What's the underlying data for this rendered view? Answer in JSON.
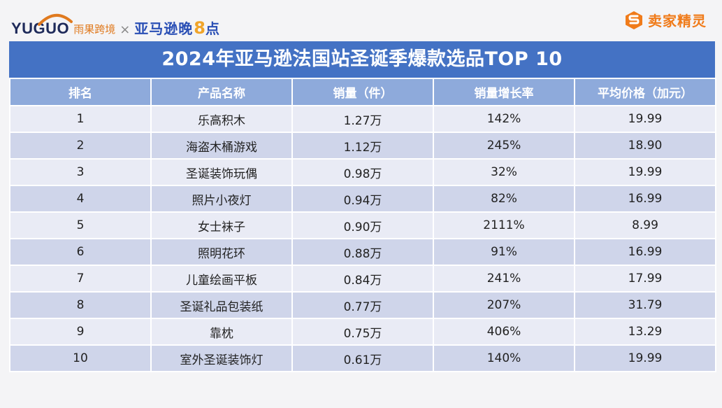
{
  "header": {
    "yuguo_logo": "YUGUO",
    "yuguo_cn": "雨果跨境",
    "times": "×",
    "amz_logo": "亚马逊晚",
    "amz_logo_num": "8",
    "amz_logo_tail": "点",
    "right_logo": "卖家精灵"
  },
  "table": {
    "title": "2024年亚马逊法国站圣诞季爆款选品TOP 10",
    "columns": [
      "排名",
      "产品名称",
      "销量（件）",
      "销量增长率",
      "平均价格（加元）"
    ],
    "rows": [
      [
        "1",
        "乐高积木",
        "1.27万",
        "142%",
        "19.99"
      ],
      [
        "2",
        "海盗木桶游戏",
        "1.12万",
        "245%",
        "18.90"
      ],
      [
        "3",
        "圣诞装饰玩偶",
        "0.98万",
        "32%",
        "19.99"
      ],
      [
        "4",
        "照片小夜灯",
        "0.94万",
        "82%",
        "16.99"
      ],
      [
        "5",
        "女士袜子",
        "0.90万",
        "2111%",
        "8.99"
      ],
      [
        "6",
        "照明花环",
        "0.88万",
        "91%",
        "16.99"
      ],
      [
        "7",
        "儿童绘画平板",
        "0.84万",
        "241%",
        "17.99"
      ],
      [
        "8",
        "圣诞礼品包装纸",
        "0.77万",
        "207%",
        "31.79"
      ],
      [
        "9",
        "靠枕",
        "0.75万",
        "406%",
        "13.29"
      ],
      [
        "10",
        "室外圣诞装饰灯",
        "0.61万",
        "140%",
        "19.99"
      ]
    ]
  },
  "colors": {
    "title_bg": "#4472c4",
    "header_bg": "#8eaadb",
    "row_light": "#e9ebf5",
    "row_dark": "#cfd5ea",
    "yuguo_orange": "#e07a1f",
    "brand_blue": "#2a4fb5",
    "accent_yellow": "#f0a42a",
    "sjjl_orange": "#f07b1a"
  }
}
